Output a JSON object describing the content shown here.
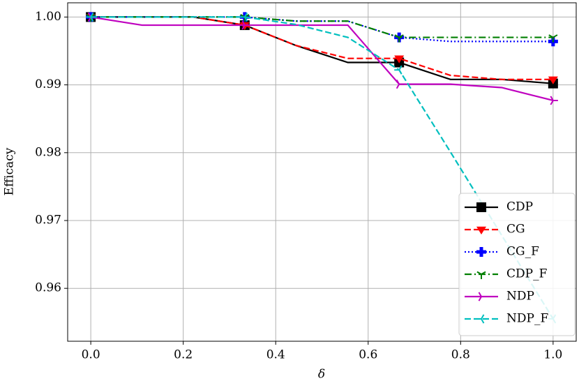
{
  "chart_data": {
    "type": "line",
    "x_label": "δ",
    "y_label": "Efficacy",
    "x": [
      0,
      0.111,
      0.222,
      0.333,
      0.444,
      0.556,
      0.667,
      0.778,
      0.889,
      1
    ],
    "markevery": 3,
    "series": [
      {
        "name": "CDP",
        "color": "#000000",
        "marker": "square",
        "dash": "solid",
        "values": [
          1.0,
          1.0,
          1.0,
          0.9988,
          0.9958,
          0.9933,
          0.9933,
          0.9908,
          0.9908,
          0.9902
        ]
      },
      {
        "name": "CG",
        "color": "#ff0000",
        "marker": "triangle-down",
        "dash": "dashed",
        "values": [
          1.0,
          1.0,
          1.0,
          0.9988,
          0.9958,
          0.9939,
          0.9939,
          0.9914,
          0.9908,
          0.9908
        ]
      },
      {
        "name": "CG_F",
        "color": "#0000ff",
        "marker": "plus",
        "dash": "dotted",
        "values": [
          1.0,
          1.0,
          1.0,
          1.0,
          0.9994,
          0.9994,
          0.997,
          0.9964,
          0.9964,
          0.9964
        ]
      },
      {
        "name": "CDP_F",
        "color": "#007f00",
        "marker": "tri-down",
        "dash": "dashdot",
        "values": [
          1.0,
          1.0,
          1.0,
          1.0,
          0.9994,
          0.9994,
          0.997,
          0.997,
          0.997,
          0.997
        ]
      },
      {
        "name": "NDP",
        "color": "#bf00bf",
        "marker": "tri-right",
        "dash": "solid",
        "values": [
          1.0,
          0.9988,
          0.9988,
          0.9988,
          0.9988,
          0.9988,
          0.9901,
          0.9901,
          0.9896,
          0.9877
        ]
      },
      {
        "name": "NDP_F",
        "color": "#00bfbf",
        "marker": "tri-left",
        "dash": "dashed",
        "values": [
          1.0,
          1.0,
          1.0,
          1.0,
          0.9989,
          0.997,
          0.9922,
          0.9801,
          0.9678,
          0.9555
        ]
      }
    ],
    "xlim": [
      -0.05,
      1.05
    ],
    "ylim": [
      0.9522,
      1.0021
    ],
    "xticks": [
      {
        "value": 0,
        "label": "0.0"
      },
      0.2,
      0.4,
      0.6,
      0.8,
      {
        "value": 1,
        "label": "1.0"
      }
    ],
    "yticks": [
      0.96,
      0.97,
      0.98,
      0.99,
      {
        "value": 1,
        "label": "1.00"
      }
    ],
    "grid": true,
    "legend": "lower right"
  }
}
